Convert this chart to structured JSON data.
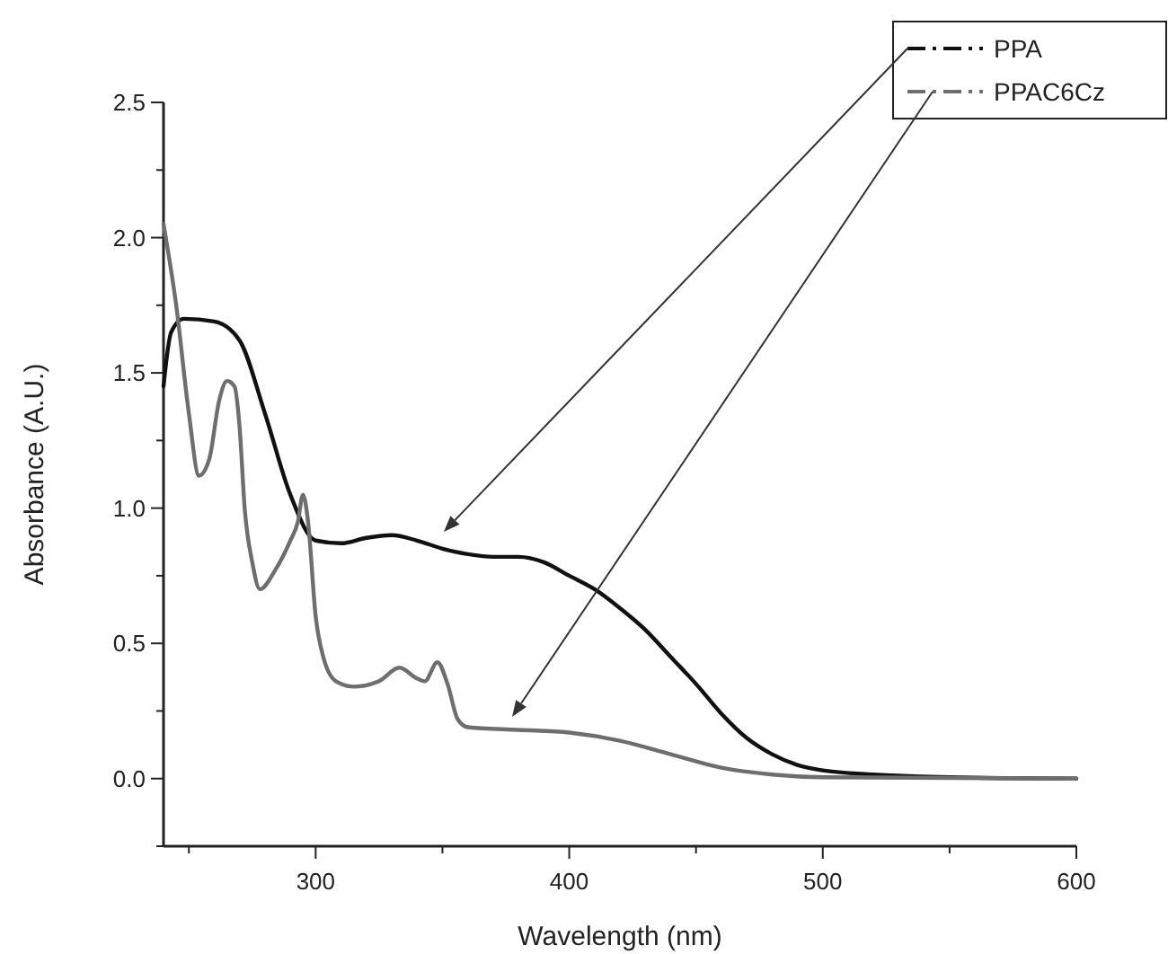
{
  "chart_data": {
    "type": "line",
    "xlabel": "Wavelength (nm)",
    "ylabel": "Absorbance (A.U.)",
    "xlim": [
      240,
      600
    ],
    "ylim": [
      -0.25,
      2.5
    ],
    "xticks": [
      {
        "value": 250,
        "label": null
      },
      300,
      {
        "value": 350,
        "label": null
      },
      400,
      {
        "value": 450,
        "label": null
      },
      500,
      {
        "value": 550,
        "label": null
      },
      600
    ],
    "yticks": [
      {
        "value": -0.25,
        "label": null
      },
      "0.0",
      {
        "value": 0.25,
        "label": null
      },
      0.5,
      {
        "value": 0.75,
        "label": null
      },
      "1.0",
      {
        "value": 1.25,
        "label": null
      },
      1.5,
      {
        "value": 1.75,
        "label": null
      },
      "2.0",
      {
        "value": 2.25,
        "label": null
      },
      2.5
    ],
    "legend": "top right",
    "marker": "none",
    "line_style": "solid",
    "grid": false,
    "series": [
      {
        "name": "PPA",
        "color": "#111111",
        "x": [
          240,
          243,
          248,
          260,
          270,
          280,
          290,
          300,
          310,
          320,
          330,
          340,
          350,
          360,
          370,
          380,
          390,
          400,
          410,
          420,
          430,
          440,
          450,
          460,
          470,
          480,
          490,
          500,
          520,
          550,
          600
        ],
        "values": [
          1.45,
          1.65,
          1.7,
          1.69,
          1.62,
          1.35,
          1.05,
          0.88,
          0.87,
          0.89,
          0.9,
          0.88,
          0.85,
          0.83,
          0.82,
          0.82,
          0.8,
          0.75,
          0.7,
          0.63,
          0.55,
          0.45,
          0.35,
          0.24,
          0.15,
          0.09,
          0.05,
          0.03,
          0.015,
          0.005,
          0
        ]
      },
      {
        "name": "PPAC6Cz",
        "color": "#6e6e6e",
        "x": [
          240,
          245,
          250,
          254,
          258,
          262,
          265,
          268,
          270,
          272,
          275,
          278,
          284,
          290,
          293,
          295,
          297,
          300,
          303,
          308,
          315,
          325,
          333,
          340,
          343,
          348,
          352,
          356,
          360,
          380,
          400,
          420,
          440,
          460,
          480,
          500,
          600
        ],
        "values": [
          2.05,
          1.75,
          1.35,
          1.12,
          1.18,
          1.4,
          1.47,
          1.45,
          1.3,
          1.0,
          0.8,
          0.7,
          0.77,
          0.88,
          0.95,
          1.05,
          0.95,
          0.6,
          0.45,
          0.36,
          0.34,
          0.36,
          0.41,
          0.37,
          0.36,
          0.43,
          0.35,
          0.22,
          0.19,
          0.18,
          0.17,
          0.14,
          0.09,
          0.04,
          0.015,
          0.005,
          0
        ]
      }
    ]
  }
}
